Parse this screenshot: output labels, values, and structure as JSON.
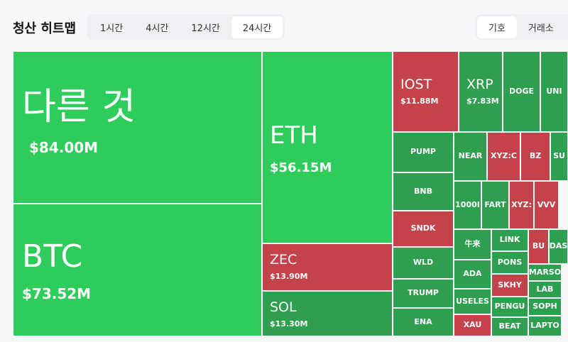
{
  "header": {
    "title": "청산 히트맵",
    "time_tabs": [
      "1시간",
      "4시간",
      "12시간",
      "24시간"
    ],
    "active_time_tab": 3,
    "group_tabs": [
      "기호",
      "거래소"
    ],
    "active_group_tab": 0
  },
  "treemap": {
    "tiles": [
      {
        "label": "다른 것",
        "value": "$84.00M",
        "color": "#2ecc5a"
      },
      {
        "label": "BTC",
        "value": "$73.52M",
        "color": "#2ecc5a"
      },
      {
        "label": "ETH",
        "value": "$56.15M",
        "color": "#2ecc5a"
      },
      {
        "label": "ZEC",
        "value": "$13.90M",
        "color": "#c4424a"
      },
      {
        "label": "SOL",
        "value": "$13.30M",
        "color": "#2e9e4f"
      },
      {
        "label": "IOST",
        "value": "$11.88M",
        "color": "#c4424a"
      },
      {
        "label": "XRP",
        "value": "$7.83M",
        "color": "#2e9e4f"
      },
      {
        "label": "DOGE",
        "color": "#2e9e4f"
      },
      {
        "label": "UNI",
        "color": "#2e9e4f"
      },
      {
        "label": "PUMP",
        "color": "#2e9e4f"
      },
      {
        "label": "BNB",
        "color": "#2e9e4f"
      },
      {
        "label": "SNDK",
        "color": "#c4424a"
      },
      {
        "label": "WLD",
        "color": "#2e9e4f"
      },
      {
        "label": "TRUMP",
        "color": "#2e9e4f"
      },
      {
        "label": "ENA",
        "color": "#2e9e4f"
      },
      {
        "label": "NEAR",
        "color": "#2e9e4f"
      },
      {
        "label": "XYZ:C",
        "color": "#c4424a"
      },
      {
        "label": "BZ",
        "color": "#c4424a"
      },
      {
        "label": "SU",
        "color": "#2e9e4f"
      },
      {
        "label": "1000I",
        "color": "#2e9e4f"
      },
      {
        "label": "FART",
        "color": "#2e9e4f"
      },
      {
        "label": "XYZ:",
        "color": "#c4424a"
      },
      {
        "label": "VVV",
        "color": "#c4424a"
      },
      {
        "label": "牛来",
        "color": "#2e9e4f"
      },
      {
        "label": "ADA",
        "color": "#2e9e4f"
      },
      {
        "label": "USELES",
        "color": "#2e9e4f"
      },
      {
        "label": "XAU",
        "color": "#c4424a"
      },
      {
        "label": "LINK",
        "color": "#2e9e4f"
      },
      {
        "label": "PONS",
        "color": "#2e9e4f"
      },
      {
        "label": "SKHY",
        "color": "#c4424a"
      },
      {
        "label": "PENGU",
        "color": "#2e9e4f"
      },
      {
        "label": "BEAT",
        "color": "#2e9e4f"
      },
      {
        "label": "BU",
        "color": "#c4424a"
      },
      {
        "label": "DAS",
        "color": "#2e9e4f"
      },
      {
        "label": "MARSO",
        "color": "#2e9e4f"
      },
      {
        "label": "LAB",
        "color": "#2e9e4f"
      },
      {
        "label": "SOPH",
        "color": "#2e9e4f"
      },
      {
        "label": "LAPTO",
        "color": "#2e9e4f"
      }
    ]
  }
}
